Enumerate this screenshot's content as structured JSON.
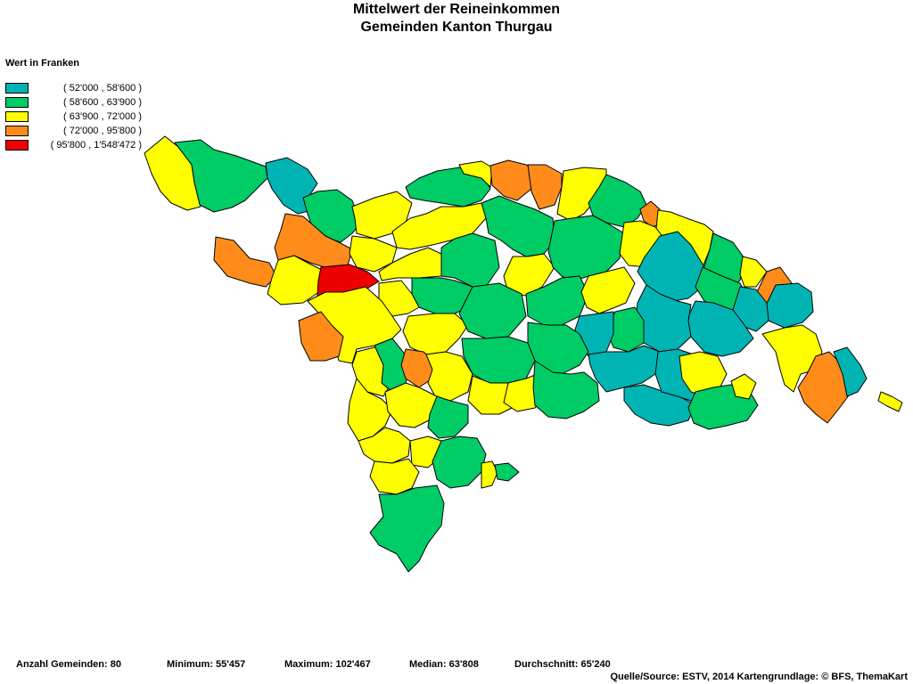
{
  "title": {
    "line1": "Mittelwert der Reineinkommen",
    "line2": "Gemeinden Kanton Thurgau"
  },
  "legend": {
    "heading": "Wert in Franken",
    "classes": [
      {
        "label": "( 52'000 , 58'600 )",
        "color": "#00b4b4"
      },
      {
        "label": "( 58'600 , 63'900 )",
        "color": "#00cc66"
      },
      {
        "label": "( 63'900 , 72'000 )",
        "color": "#ffff00"
      },
      {
        "label": "( 72'000 , 95'800 )",
        "color": "#ff8c1a"
      },
      {
        "label": "( 95'800 , 1'548'472 )",
        "color": "#ee0000"
      }
    ]
  },
  "stats": {
    "count": "Anzahl Gemeinden: 80",
    "minimum": "Minimum: 55'457",
    "maximum": "Maximum: 102'467",
    "median": "Median: 63'808",
    "mean": "Durchschnitt: 65'240"
  },
  "source": "Quelle/Source: ESTV, 2014 Kartengrundlage: © BFS, ThemaKart"
}
